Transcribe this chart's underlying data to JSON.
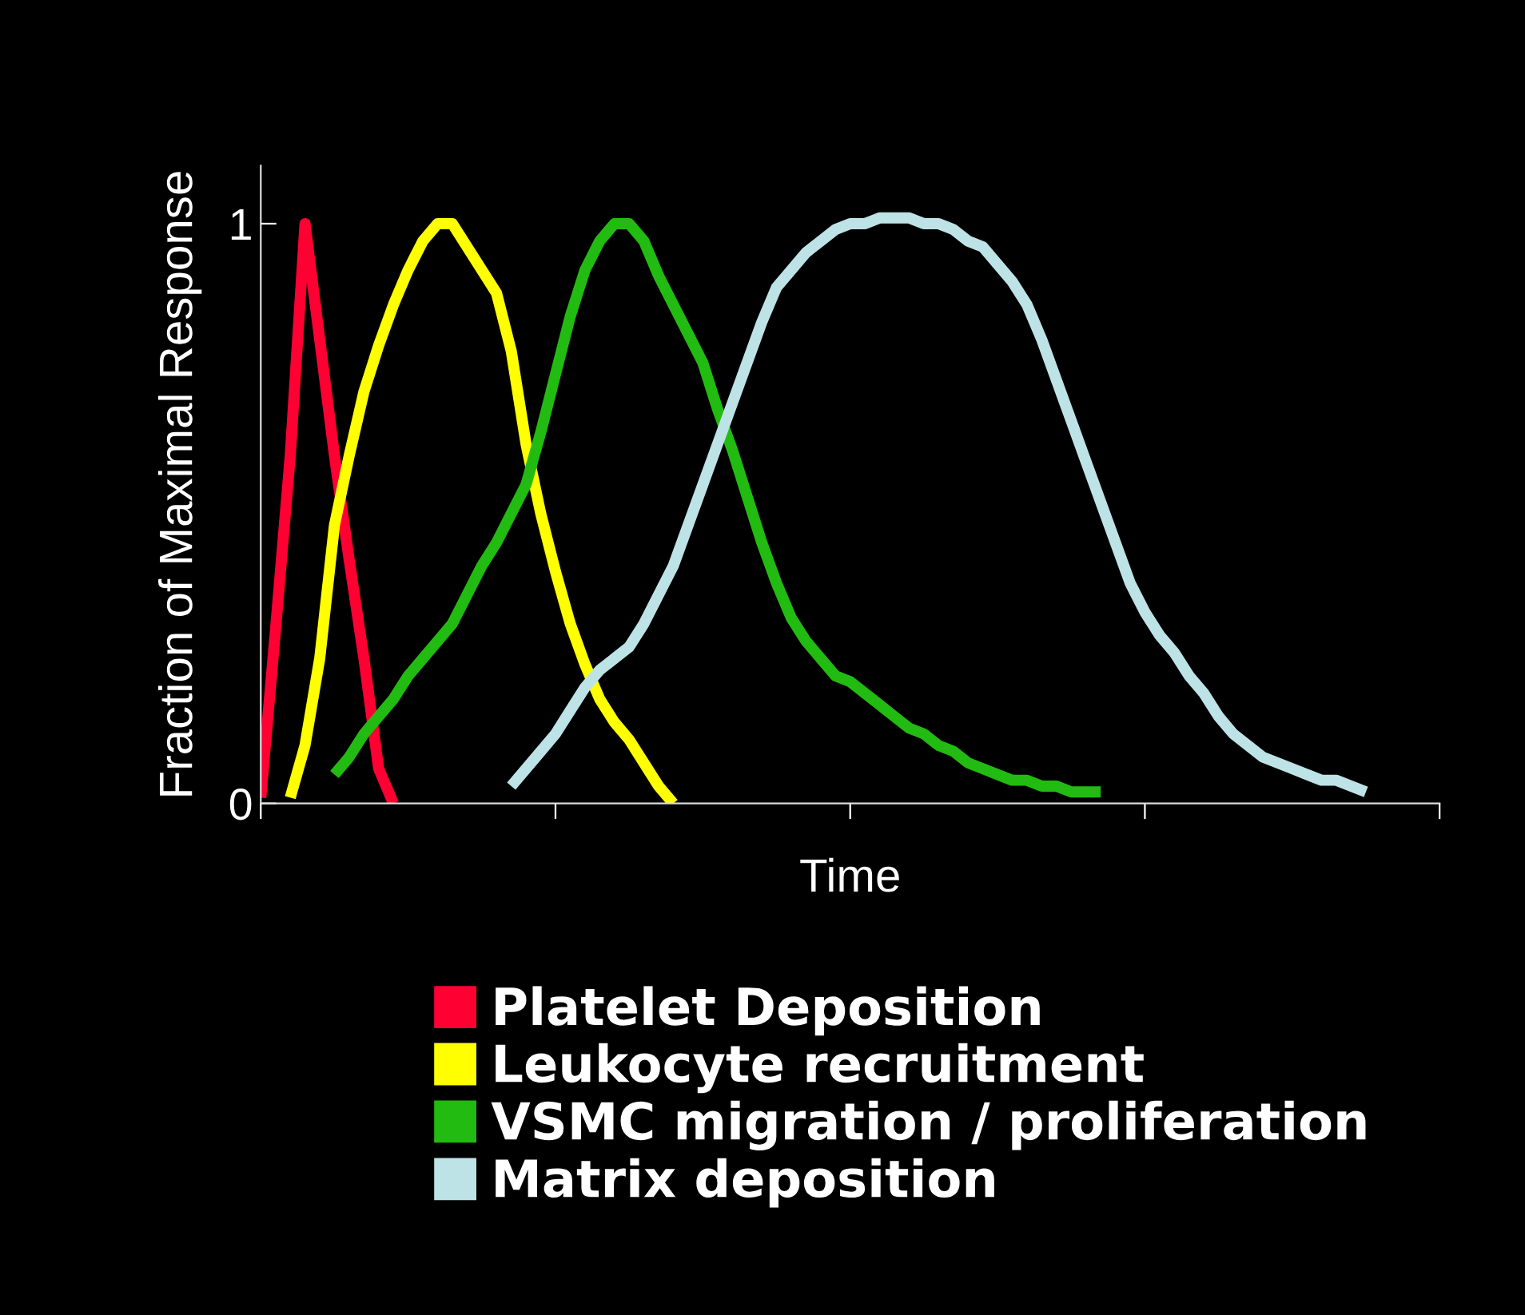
{
  "chart_data": {
    "type": "line",
    "xlabel": "Time",
    "ylabel": "Fraction of Maximal Response",
    "categories": [
      null,
      null,
      null,
      null,
      null,
      null,
      null,
      null,
      null,
      null,
      null,
      null,
      null,
      null,
      null,
      null,
      null,
      null,
      null,
      null,
      null,
      null,
      null,
      null,
      null,
      null,
      null,
      null,
      null,
      null,
      null,
      null,
      null,
      null,
      null,
      null,
      null,
      null,
      null,
      null,
      null,
      null,
      null,
      null,
      null,
      null,
      null,
      null,
      null,
      null,
      null,
      null,
      null,
      null,
      null,
      null,
      null,
      null,
      null,
      null,
      null,
      null,
      null,
      null,
      null,
      null,
      null,
      null,
      null,
      null,
      null,
      null,
      null,
      null,
      null,
      null,
      null,
      null,
      null,
      null,
      null
    ],
    "ylim": [
      0,
      1.1
    ],
    "yticks": [
      0,
      1
    ],
    "grid": false,
    "legend": "bottom",
    "marker": "none",
    "line_style": "solid",
    "series": [
      {
        "name": "Platelet Deposition",
        "color": "#ff0033",
        "values": [
          0.01,
          0.3,
          0.6,
          1.0,
          0.8,
          0.6,
          0.42,
          0.25,
          0.06,
          0,
          null,
          null,
          null,
          null,
          null,
          null,
          null,
          null,
          null,
          null,
          null,
          null,
          null,
          null,
          null,
          null,
          null,
          null,
          null,
          null,
          null,
          null,
          null,
          null,
          null,
          null,
          null,
          null,
          null,
          null,
          null,
          null,
          null,
          null,
          null,
          null,
          null,
          null,
          null,
          null,
          null,
          null,
          null,
          null,
          null,
          null,
          null,
          null,
          null,
          null,
          null,
          null,
          null,
          null,
          null,
          null,
          null,
          null,
          null,
          null,
          null,
          null,
          null,
          null,
          null,
          null,
          null,
          null,
          null,
          null,
          null
        ]
      },
      {
        "name": "Leukocyte recruitment",
        "color": "#ffff00",
        "values": [
          null,
          null,
          0.01,
          0.1,
          0.25,
          0.48,
          0.6,
          0.71,
          0.79,
          0.86,
          0.92,
          0.97,
          1.0,
          1.0,
          0.96,
          0.92,
          0.88,
          0.78,
          0.62,
          0.5,
          0.4,
          0.31,
          0.24,
          0.18,
          0.14,
          0.11,
          0.07,
          0.03,
          0,
          null,
          null,
          null,
          null,
          null,
          null,
          null,
          null,
          null,
          null,
          null,
          null,
          null,
          null,
          null,
          null,
          null,
          null,
          null,
          null,
          null,
          null,
          null,
          null,
          null,
          null,
          null,
          null,
          null,
          null,
          null,
          null,
          null,
          null,
          null,
          null,
          null,
          null,
          null,
          null,
          null,
          null,
          null,
          null,
          null,
          null,
          null,
          null,
          null,
          null,
          null,
          null
        ]
      },
      {
        "name": "VSMC migration / proliferation",
        "color": "#22bb11",
        "values": [
          null,
          null,
          null,
          null,
          null,
          0.05,
          0.08,
          0.12,
          0.15,
          0.18,
          0.22,
          0.25,
          0.28,
          0.31,
          0.36,
          0.41,
          0.45,
          0.5,
          0.55,
          0.64,
          0.74,
          0.84,
          0.92,
          0.97,
          1.0,
          1.0,
          0.97,
          0.91,
          0.86,
          0.81,
          0.76,
          0.68,
          0.61,
          0.53,
          0.45,
          0.38,
          0.32,
          0.28,
          0.25,
          0.22,
          0.21,
          0.19,
          0.17,
          0.15,
          0.13,
          0.12,
          0.1,
          0.09,
          0.07,
          0.06,
          0.05,
          0.04,
          0.04,
          0.03,
          0.03,
          0.02,
          0.02,
          0.02,
          null,
          null,
          null,
          null,
          null,
          null,
          null,
          null,
          null,
          null,
          null,
          null,
          null,
          null,
          null,
          null,
          null,
          null,
          null,
          null,
          null,
          null,
          null
        ]
      },
      {
        "name": "Matrix deposition",
        "color": "#bde3e6",
        "values": [
          null,
          null,
          null,
          null,
          null,
          null,
          null,
          null,
          null,
          null,
          null,
          null,
          null,
          null,
          null,
          null,
          null,
          0.03,
          0.06,
          0.09,
          0.12,
          0.16,
          0.2,
          0.23,
          0.25,
          0.27,
          0.31,
          0.36,
          0.41,
          0.48,
          0.55,
          0.62,
          0.69,
          0.76,
          0.83,
          0.89,
          0.92,
          0.95,
          0.97,
          0.99,
          1.0,
          1.0,
          1.01,
          1.01,
          1.01,
          1.0,
          1.0,
          0.99,
          0.97,
          0.96,
          0.93,
          0.9,
          0.86,
          0.8,
          0.73,
          0.66,
          0.59,
          0.52,
          0.45,
          0.38,
          0.33,
          0.29,
          0.26,
          0.22,
          0.19,
          0.15,
          0.12,
          0.1,
          0.08,
          0.07,
          0.06,
          0.05,
          0.04,
          0.04,
          0.03,
          0.02,
          null,
          null,
          null,
          null,
          null
        ]
      }
    ]
  }
}
